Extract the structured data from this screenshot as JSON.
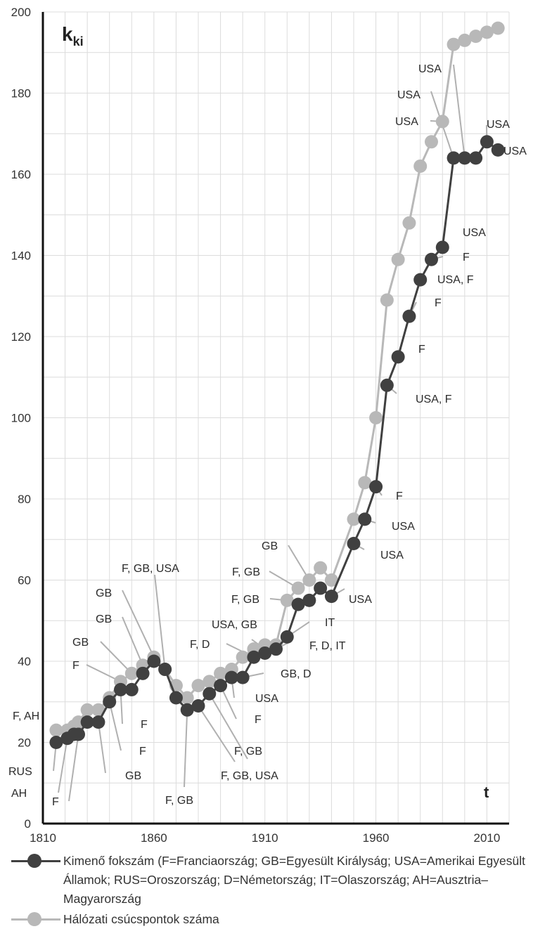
{
  "chart_data": {
    "type": "line",
    "ylabel_main": "k",
    "ylabel_sub": "ki",
    "xlabel": "t",
    "xlim": [
      1810,
      2020
    ],
    "ylim": [
      0,
      200
    ],
    "x_ticks": [
      1810,
      1860,
      1910,
      1960,
      2010
    ],
    "y_ticks": [
      0,
      20,
      40,
      60,
      80,
      100,
      120,
      140,
      160,
      180,
      200
    ],
    "grid": true,
    "series": [
      {
        "name": "Kimenő fokszám (F=Franciaország; GB=Egyesült Királyság; USA=Amerikai Egyesült Államok; RUS=Oroszország; D=Németország; IT=Olaszország; AH=Ausztria–Magyarország",
        "color": "#404040",
        "x": [
          1816,
          1821,
          1824,
          1826,
          1830,
          1835,
          1840,
          1845,
          1850,
          1855,
          1860,
          1865,
          1870,
          1875,
          1880,
          1885,
          1890,
          1895,
          1900,
          1905,
          1910,
          1915,
          1920,
          1925,
          1930,
          1935,
          1940,
          1950,
          1955,
          1960,
          1965,
          1970,
          1975,
          1980,
          1985,
          1990,
          1995,
          2000,
          2005,
          2010,
          2015
        ],
        "y": [
          20,
          21,
          22,
          22,
          25,
          25,
          30,
          33,
          33,
          37,
          40,
          38,
          31,
          28,
          29,
          32,
          34,
          36,
          36,
          41,
          42,
          43,
          46,
          54,
          55,
          58,
          56,
          69,
          75,
          83,
          108,
          115,
          125,
          134,
          139,
          142,
          164,
          164,
          164,
          168,
          166
        ]
      },
      {
        "name": "Hálózati csúcspontok száma",
        "color": "#b8b8b8",
        "x": [
          1816,
          1821,
          1824,
          1826,
          1830,
          1835,
          1840,
          1845,
          1850,
          1855,
          1860,
          1865,
          1870,
          1875,
          1880,
          1885,
          1890,
          1895,
          1900,
          1905,
          1910,
          1915,
          1920,
          1925,
          1930,
          1935,
          1940,
          1950,
          1955,
          1960,
          1965,
          1970,
          1975,
          1980,
          1985,
          1990,
          1995,
          2000,
          2005,
          2010,
          2015
        ],
        "y": [
          23,
          23,
          24,
          25,
          28,
          28,
          31,
          35,
          37,
          39,
          41,
          38,
          34,
          31,
          34,
          35,
          37,
          38,
          41,
          43,
          44,
          44,
          55,
          58,
          60,
          63,
          60,
          75,
          84,
          100,
          129,
          139,
          148,
          162,
          168,
          173,
          192,
          193,
          194,
          195,
          196
        ]
      }
    ],
    "annotations": [
      {
        "text": "F, AH",
        "ax": 1816,
        "ay": 23,
        "tx": 18,
        "ty": 1018,
        "lx": 76,
        "ly": 1036
      },
      {
        "text": "RUS",
        "ax": 1816,
        "ay": 20,
        "tx": 12,
        "ty": 1097,
        "lx": 76,
        "ly": 1097
      },
      {
        "text": "AH",
        "ax": 1821,
        "ay": 21,
        "tx": 16,
        "ty": 1128,
        "lx": 83,
        "ly": 1128
      },
      {
        "text": "F",
        "ax": 1826,
        "ay": 22,
        "tx": 74,
        "ty": 1140,
        "lx": 98,
        "ly": 1140
      },
      {
        "text": "GB",
        "ax": 1835,
        "ay": 25,
        "tx": 178,
        "ty": 1103,
        "lx": 150,
        "ly": 1100
      },
      {
        "text": "F",
        "ax": 1840,
        "ay": 30,
        "tx": 198,
        "ty": 1068,
        "lx": 172,
        "ly": 1068
      },
      {
        "text": "F",
        "ax": 1845,
        "ay": 33,
        "tx": 200,
        "ty": 1030,
        "lx": 174,
        "ly": 1030
      },
      {
        "text": "F",
        "ax": 1845,
        "ay": 35,
        "tx": 103,
        "ty": 946,
        "lx": 123,
        "ly": 946
      },
      {
        "text": "GB",
        "ax": 1850,
        "ay": 37,
        "tx": 103,
        "ty": 913,
        "lx": 143,
        "ly": 913
      },
      {
        "text": "GB",
        "ax": 1855,
        "ay": 39,
        "tx": 136,
        "ty": 880,
        "lx": 174,
        "ly": 878
      },
      {
        "text": "GB",
        "ax": 1860,
        "ay": 41,
        "tx": 136,
        "ty": 843,
        "lx": 174,
        "ly": 840
      },
      {
        "text": "F, GB, USA",
        "ax": 1865,
        "ay": 38,
        "tx": 173,
        "ty": 808,
        "lx": 220,
        "ly": 818
      },
      {
        "text": "F, GB",
        "ax": 1875,
        "ay": 28,
        "tx": 235,
        "ty": 1138,
        "lx": 262,
        "ly": 1120
      },
      {
        "text": "F, GB, USA",
        "ax": 1880,
        "ay": 29,
        "tx": 314,
        "ty": 1103,
        "lx": 334,
        "ly": 1084
      },
      {
        "text": "F, GB",
        "ax": 1885,
        "ay": 32,
        "tx": 333,
        "ty": 1068,
        "lx": 352,
        "ly": 1080
      },
      {
        "text": "F",
        "ax": 1890,
        "ay": 34,
        "tx": 362,
        "ty": 1023,
        "lx": 336,
        "ly": 1023
      },
      {
        "text": "USA",
        "ax": 1895,
        "ay": 36,
        "tx": 363,
        "ty": 993,
        "lx": 333,
        "ly": 993
      },
      {
        "text": "GB, D",
        "ax": 1900,
        "ay": 36,
        "tx": 399,
        "ty": 958,
        "lx": 375,
        "ly": 958
      },
      {
        "text": "F, D",
        "ax": 1905,
        "ay": 41,
        "tx": 270,
        "ty": 916,
        "lx": 322,
        "ly": 916
      },
      {
        "text": "USA, GB",
        "ax": 1910,
        "ay": 43,
        "tx": 301,
        "ty": 888,
        "lx": 358,
        "ly": 910
      },
      {
        "text": "F, D, IT",
        "ax": 1915,
        "ay": 43,
        "tx": 440,
        "ty": 918,
        "lx": 415,
        "ly": 912
      },
      {
        "text": "IT",
        "ax": 1920,
        "ay": 46,
        "tx": 462,
        "ty": 885,
        "lx": 440,
        "ly": 885
      },
      {
        "text": "F, GB",
        "ax": 1920,
        "ay": 55,
        "tx": 329,
        "ty": 852,
        "lx": 384,
        "ly": 852
      },
      {
        "text": "F, GB",
        "ax": 1925,
        "ay": 58,
        "tx": 330,
        "ty": 813,
        "lx": 383,
        "ly": 813
      },
      {
        "text": "GB",
        "ax": 1930,
        "ay": 60,
        "tx": 372,
        "ty": 776,
        "lx": 410,
        "ly": 776
      },
      {
        "text": "USA",
        "ax": 1940,
        "ay": 56,
        "tx": 496,
        "ty": 852,
        "lx": 490,
        "ly": 838
      },
      {
        "text": "USA",
        "ax": 1950,
        "ay": 69,
        "tx": 541,
        "ty": 789,
        "lx": 518,
        "ly": 782
      },
      {
        "text": "USA",
        "ax": 1955,
        "ay": 75,
        "tx": 557,
        "ty": 748,
        "lx": 534,
        "ly": 744
      },
      {
        "text": "F",
        "ax": 1960,
        "ay": 83,
        "tx": 563,
        "ty": 705,
        "lx": 543,
        "ly": 705
      },
      {
        "text": "USA, F",
        "ax": 1965,
        "ay": 108,
        "tx": 591,
        "ty": 567,
        "lx": 564,
        "ly": 560
      },
      {
        "text": "F",
        "ax": 1970,
        "ay": 115,
        "tx": 595,
        "ty": 496,
        "lx": 570,
        "ly": 496
      },
      {
        "text": "F",
        "ax": 1975,
        "ay": 125,
        "tx": 618,
        "ty": 430,
        "lx": 592,
        "ly": 430
      },
      {
        "text": "USA, F",
        "ax": 1980,
        "ay": 134,
        "tx": 622,
        "ty": 397,
        "lx": 601,
        "ly": 397
      },
      {
        "text": "F",
        "ax": 1985,
        "ay": 139,
        "tx": 658,
        "ty": 365,
        "lx": 630,
        "ly": 365
      },
      {
        "text": "USA",
        "ax": 1990,
        "ay": 142,
        "tx": 658,
        "ty": 330,
        "lx": 632,
        "ly": 330
      },
      {
        "text": "USA",
        "ax": 1990,
        "ay": 173,
        "tx": 562,
        "ty": 172,
        "lx": 612,
        "ly": 172
      },
      {
        "text": "USA",
        "ax": 1995,
        "ay": 164,
        "tx": 565,
        "ty": 134,
        "lx": 613,
        "ly": 130
      },
      {
        "text": "USA",
        "ax": 2000,
        "ay": 164,
        "tx": 595,
        "ty": 97,
        "lx": 645,
        "ly": 92
      },
      {
        "text": "USA",
        "ax": 2010,
        "ay": 168,
        "tx": 692,
        "ty": 176,
        "lx": 692,
        "ly": 178
      },
      {
        "text": "USA",
        "ax": 2015,
        "ay": 166,
        "tx": 716,
        "ty": 214,
        "lx": 716,
        "ly": 214
      }
    ]
  }
}
